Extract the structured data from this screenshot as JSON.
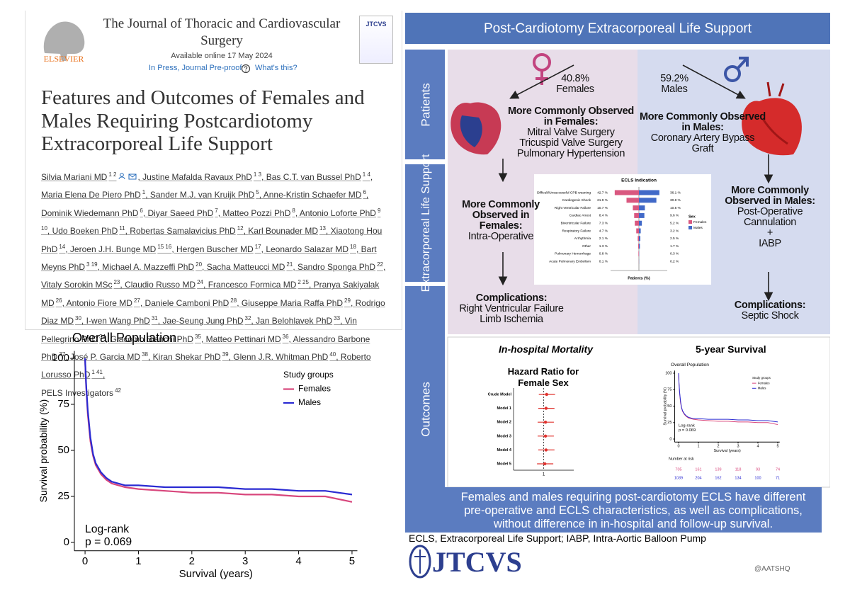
{
  "article": {
    "journal": "The Journal of Thoracic and Cardiovascular Surgery",
    "available": "Available online 17 May 2024",
    "status": "In Press, Journal Pre-proof",
    "whats_this": "What's this?",
    "publisher": "ELSEVIER",
    "cover": "JTCVS",
    "title": "Features and Outcomes of Females and Males Requiring Postcardiotomy Extracorporeal Life Support",
    "authors": [
      {
        "name": "Silvia Mariani MD",
        "sup": "1 2"
      },
      {
        "name": "Justine Mafalda Ravaux PhD",
        "sup": "1 3"
      },
      {
        "name": "Bas C.T. van Bussel PhD",
        "sup": "1 4"
      },
      {
        "name": "Maria Elena De Piero PhD",
        "sup": "1"
      },
      {
        "name": "Sander M.J. van Kruijk PhD",
        "sup": "5"
      },
      {
        "name": "Anne-Kristin Schaefer MD",
        "sup": "6"
      },
      {
        "name": "Dominik Wiedemann PhD",
        "sup": "6"
      },
      {
        "name": "Diyar Saeed PhD",
        "sup": "7"
      },
      {
        "name": "Matteo Pozzi PhD",
        "sup": "8"
      },
      {
        "name": "Antonio Loforte PhD",
        "sup": "9 10"
      },
      {
        "name": "Udo Boeken PhD",
        "sup": "11"
      },
      {
        "name": "Robertas Samalavicius PhD",
        "sup": "12"
      },
      {
        "name": "Karl Bounader MD",
        "sup": "13"
      },
      {
        "name": "Xiaotong Hou PhD",
        "sup": "14"
      },
      {
        "name": "Jeroen J.H. Bunge MD",
        "sup": "15 16"
      },
      {
        "name": "Hergen Buscher MD",
        "sup": "17"
      },
      {
        "name": "Leonardo Salazar MD",
        "sup": "18"
      },
      {
        "name": "Bart Meyns PhD",
        "sup": "3 19"
      },
      {
        "name": "Michael A. Mazzeffi PhD",
        "sup": "20"
      },
      {
        "name": "Sacha Matteucci MD",
        "sup": "21"
      },
      {
        "name": "Sandro Sponga PhD",
        "sup": "22"
      },
      {
        "name": "Vitaly Sorokin MSc",
        "sup": "23"
      },
      {
        "name": "Claudio Russo MD",
        "sup": "24"
      },
      {
        "name": "Francesco Formica MD",
        "sup": "2 25"
      },
      {
        "name": "Pranya Sakiyalak MD",
        "sup": "26"
      },
      {
        "name": "Antonio Fiore MD",
        "sup": "27"
      },
      {
        "name": "Daniele Camboni PhD",
        "sup": "28"
      },
      {
        "name": "Giuseppe Maria Raffa PhD",
        "sup": "29"
      },
      {
        "name": "Rodrigo Diaz MD",
        "sup": "30"
      },
      {
        "name": "I-wen Wang PhD",
        "sup": "31"
      },
      {
        "name": "Jae-Seung Jung PhD",
        "sup": "32"
      },
      {
        "name": "Jan Belohlavek PhD",
        "sup": "33"
      },
      {
        "name": "Vin Pellegrino PhD",
        "sup": "34"
      },
      {
        "name": "Giacomo Bianchi PhD",
        "sup": "35"
      },
      {
        "name": "Matteo Pettinari MD",
        "sup": "36"
      },
      {
        "name": "Alessandro Barbone PhD",
        "sup": "37"
      },
      {
        "name": "José P. Garcia MD",
        "sup": "38"
      },
      {
        "name": "Kiran Shekar PhD",
        "sup": "39"
      },
      {
        "name": "Glenn J.R. Whitman PhD",
        "sup": "40"
      },
      {
        "name": "Roberto Lorusso PhD",
        "sup": "1 41"
      }
    ],
    "group": {
      "name": "PELS Investigators",
      "sup": "42"
    }
  },
  "graphical_abstract": {
    "title": "Post-Cardiotomy Extracorporeal Life Support",
    "row_labels": [
      "Patients",
      "Extracorporeal Life Support",
      "Outcomes"
    ],
    "females": {
      "percent": "40.8%",
      "label": "Females",
      "observed_title": "More Commonly Observed in Females:",
      "observed_items": [
        "Mitral Valve Surgery",
        "Tricuspid Valve Surgery",
        "Pulmonary Hypertension"
      ],
      "ecls_title": "More Commonly Observed in Females:",
      "ecls_items": [
        "Intra-Operative"
      ],
      "complications_title": "Complications:",
      "complications_items": [
        "Right Ventricular Failure",
        "Limb Ischemia"
      ]
    },
    "males": {
      "percent": "59.2%",
      "label": "Males",
      "observed_title": "More Commonly Observed in Males:",
      "observed_items": [
        "Coronary Artery Bypass Graft"
      ],
      "ecls_title": "More Commonly Observed in Males:",
      "ecls_items": [
        "Post-Operative Cannulation",
        "+",
        "IABP"
      ],
      "complications_title": "Complications:",
      "complications_items": [
        "Septic Shock"
      ]
    },
    "mortality_heading": "In-hospital Mortality",
    "survival_heading": "5-year Survival",
    "risk_table": {
      "title": "Number at risk",
      "rows": [
        [
          705,
          161,
          139,
          118,
          93,
          74
        ],
        [
          1039,
          204,
          162,
          134,
          100,
          71
        ]
      ]
    },
    "summary": "Females and males requiring post-cardiotomy ECLS have different pre-operative and ECLS characteristics, as well as complications, without difference in in-hospital and follow-up survival.",
    "footnote": "ECLS, Extracorporeal Life Support; IABP, Intra-Aortic Balloon Pump",
    "logo": "JTCVS",
    "handle": "@AATSHQ"
  },
  "chart_data": [
    {
      "type": "line",
      "title": "Overall Population",
      "x_label": "Survival (years)",
      "y_label": "Survival probability (%)",
      "legend_title": "Study groups",
      "annotation": [
        "Log-rank",
        "p = 0.069"
      ],
      "grid": false,
      "x": [
        0,
        0.02,
        0.05,
        0.1,
        0.15,
        0.2,
        0.3,
        0.4,
        0.5,
        0.75,
        1,
        1.5,
        2,
        2.5,
        3,
        3.5,
        4,
        4.5,
        5
      ],
      "series": [
        {
          "name": "Females",
          "color": "#d8467c",
          "values": [
            100,
            85,
            70,
            55,
            47,
            42,
            37,
            34,
            32,
            30,
            29,
            28,
            27,
            27,
            26,
            26,
            25,
            25,
            22
          ]
        },
        {
          "name": "Males",
          "color": "#2a2ad2",
          "values": [
            100,
            86,
            72,
            57,
            48,
            43,
            38,
            35,
            33,
            31,
            31,
            30,
            30,
            30,
            29,
            29,
            28,
            28,
            26
          ]
        }
      ],
      "xlim": [
        -0.2,
        5.1
      ],
      "xticks": [
        0,
        1,
        2,
        3,
        4,
        5
      ],
      "ylim": [
        -4.5,
        104
      ],
      "yticks": [
        0,
        25,
        50,
        75,
        100
      ]
    },
    {
      "type": "bar",
      "orientation": "horizontal",
      "title": "ECLS Indication",
      "x_label": "Patients (%)",
      "legend_title": "Sex",
      "categories": [
        "Difficult/Unsuccessful CPB weaning",
        "Cardiogenic Shock",
        "Right Ventricular Failure",
        "Cardiac Arrest",
        "Biventricular Failure",
        "Respiratory Failure",
        "Arrhythmia",
        "Other",
        "Pulmonary Hemorrhage",
        "Acute Pulmonary Embolism"
      ],
      "series": [
        {
          "name": "Females",
          "color": "#d9577f",
          "values": [
            42.7,
            21.9,
            10.7,
            8.4,
            7.3,
            4.7,
            2.1,
            1.3,
            0.8,
            0.1
          ],
          "value_labels": [
            "42.7 %",
            "21.9 %",
            "10.7 %",
            "8.4 %",
            "7.3 %",
            "4.7 %",
            "2.1 %",
            "1.3 %",
            "0.8 %",
            "0.1 %"
          ]
        },
        {
          "name": "Males",
          "color": "#4169c8",
          "values": [
            36.1,
            30.8,
            10.5,
            9.6,
            5.2,
            3.2,
            2.5,
            1.7,
            0.3,
            0.2
          ],
          "value_labels": [
            "36.1 %",
            "30.8 %",
            "10.5 %",
            "9.6 %",
            "5.2 %",
            "3.2 %",
            "2.5 %",
            "1.7 %",
            "0.3 %",
            "0.2 %"
          ]
        }
      ],
      "xlim": [
        0,
        50
      ]
    },
    {
      "type": "forest",
      "title": "Hazard Ratio for Female Sex",
      "categories": [
        "Crude Model",
        "Model 1",
        "Model 2",
        "Model 3",
        "Model 4",
        "Model 5"
      ],
      "values": [
        1.05,
        1.04,
        1.03,
        1.03,
        1.04,
        1.02
      ],
      "lower": [
        0.92,
        0.91,
        0.9,
        0.9,
        0.91,
        0.89
      ],
      "upper": [
        1.19,
        1.18,
        1.17,
        1.17,
        1.18,
        1.16
      ],
      "color": "#e0332e",
      "xlim": [
        0.5,
        1.5
      ],
      "xticks": [
        1
      ]
    }
  ]
}
